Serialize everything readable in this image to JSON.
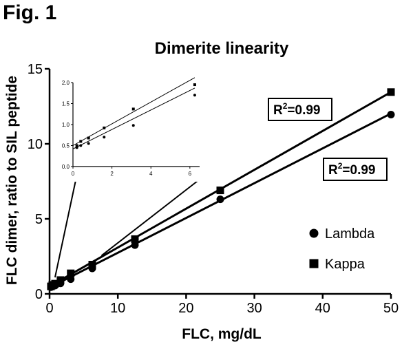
{
  "figure_label": "Fig. 1",
  "chart_data": {
    "type": "scatter",
    "title": "Dimerite linearity",
    "xlabel": "FLC, mg/dL",
    "ylabel": "FLC dimer, ratio to SIL peptide",
    "xlim": [
      0,
      50
    ],
    "ylim": [
      0,
      15
    ],
    "xticks": [
      0,
      10,
      20,
      30,
      40,
      50
    ],
    "yticks": [
      0,
      5,
      10,
      15
    ],
    "x": [
      0.2,
      0.4,
      0.8,
      1.6,
      3.1,
      6.25,
      12.5,
      25,
      50
    ],
    "series": [
      {
        "name": "Lambda",
        "marker": "circle",
        "values": [
          0.45,
          0.5,
          0.55,
          0.7,
          0.98,
          1.7,
          3.25,
          6.3,
          11.95
        ],
        "r2_label": "0.99",
        "fit_intercept": 0.42,
        "fit_slope": 0.232
      },
      {
        "name": "Kappa",
        "marker": "square",
        "values": [
          0.5,
          0.6,
          0.68,
          0.92,
          1.37,
          1.95,
          3.65,
          6.9,
          13.45
        ],
        "r2_label": "0.99",
        "fit_intercept": 0.5,
        "fit_slope": 0.259
      }
    ],
    "legend": {
      "position": "right-middle",
      "entries": [
        "Lambda",
        "Kappa"
      ]
    },
    "inset": {
      "xlim": [
        0,
        6.5
      ],
      "ylim": [
        0,
        2.0
      ],
      "xticks": [
        0,
        2,
        4,
        6
      ],
      "yticks": [
        0.0,
        0.5,
        1.0,
        1.5,
        2.0
      ],
      "ytick_labels": [
        "0.0",
        "0.5",
        "1.0",
        "1.5",
        "2.0"
      ]
    }
  }
}
